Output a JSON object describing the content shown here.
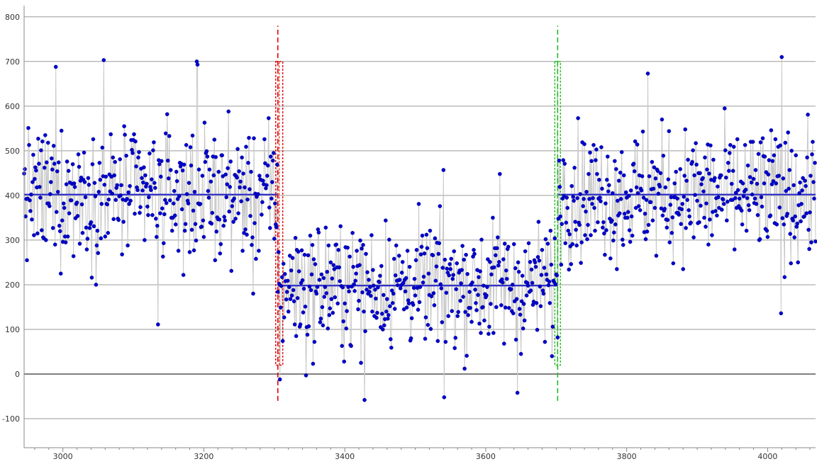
{
  "chart_data": {
    "type": "scatter",
    "xlim": [
      2945,
      4068
    ],
    "ylim": [
      -165,
      825
    ],
    "y_ticks": [
      -100,
      0,
      100,
      200,
      300,
      400,
      500,
      600,
      700,
      800
    ],
    "x_ticks": [
      3000,
      3200,
      3400,
      3600,
      3800,
      4000
    ],
    "grid": true,
    "series": [
      {
        "color": "#0000cc",
        "connector_color": "#c8c8c8",
        "regimes": [
          {
            "x_start": 2945,
            "x_end": 3304,
            "mean": 402,
            "spread": 100
          },
          {
            "x_start": 3305,
            "x_end": 3702,
            "mean": 198,
            "spread": 95
          },
          {
            "x_start": 3703,
            "x_end": 4068,
            "mean": 402,
            "spread": 100
          }
        ],
        "notable_points": [
          {
            "x": 2990,
            "y": 688
          },
          {
            "x": 3058,
            "y": 703
          },
          {
            "x": 3135,
            "y": 111
          },
          {
            "x": 3190,
            "y": 700
          },
          {
            "x": 3191,
            "y": 693
          },
          {
            "x": 3270,
            "y": 180
          },
          {
            "x": 3308,
            "y": -12
          },
          {
            "x": 3428,
            "y": -58
          },
          {
            "x": 3345,
            "y": -3
          },
          {
            "x": 3540,
            "y": 457
          },
          {
            "x": 3541,
            "y": -52
          },
          {
            "x": 3620,
            "y": 448
          },
          {
            "x": 3645,
            "y": -42
          },
          {
            "x": 3830,
            "y": 673
          },
          {
            "x": 4020,
            "y": 710
          },
          {
            "x": 4019,
            "y": 136
          }
        ]
      }
    ],
    "mean_segments": [
      {
        "x_start": 2945,
        "x_end": 3304,
        "y": 402,
        "color": "#2222cc"
      },
      {
        "x_start": 3305,
        "x_end": 3702,
        "y": 198,
        "color": "#2222cc"
      },
      {
        "x_start": 3703,
        "x_end": 4068,
        "y": 402,
        "color": "#2222cc"
      }
    ],
    "change_points": [
      {
        "x": 3305,
        "color": "#dd0000",
        "y_range": [
          -60,
          780
        ],
        "interval": [
          3302,
          3312
        ],
        "interval_y": [
          20,
          700
        ]
      },
      {
        "x": 3702,
        "color": "#22bb22",
        "y_range": [
          -60,
          780
        ],
        "interval": [
          3698,
          3706
        ],
        "interval_y": [
          20,
          700
        ]
      }
    ]
  }
}
